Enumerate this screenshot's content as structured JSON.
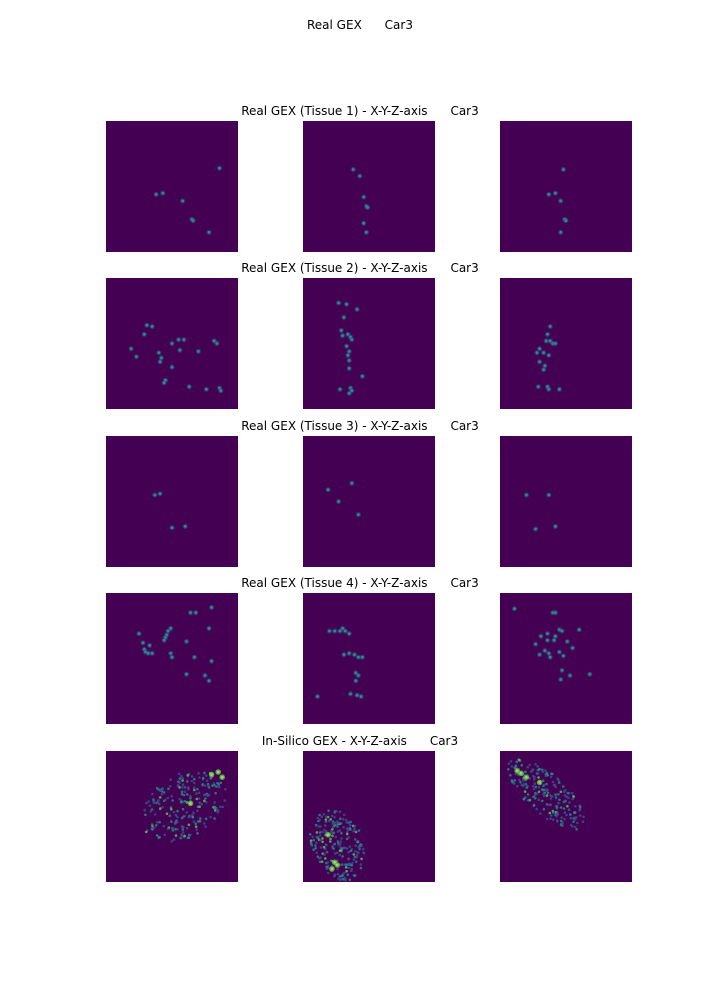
{
  "figure": {
    "title": "Real GEX      Car3"
  },
  "colors": {
    "background": "#440154",
    "low": "#3b528b",
    "mid": "#21918c",
    "high": "#5ec962",
    "peak": "#aadc32"
  },
  "chart_data": [
    {
      "type": "scatter",
      "title": "Real GEX (Tissue 1) - X-Y-Z-axis      Car3",
      "views": [
        {
          "name": "view-1",
          "points": [
            [
              0.86,
              0.36
            ],
            [
              0.38,
              0.56
            ],
            [
              0.43,
              0.55
            ],
            [
              0.58,
              0.61
            ],
            [
              0.65,
              0.75
            ],
            [
              0.66,
              0.76
            ],
            [
              0.78,
              0.85
            ]
          ]
        },
        {
          "name": "view-2",
          "points": [
            [
              0.38,
              0.37
            ],
            [
              0.43,
              0.42
            ],
            [
              0.46,
              0.58
            ],
            [
              0.48,
              0.65
            ],
            [
              0.49,
              0.66
            ],
            [
              0.46,
              0.78
            ],
            [
              0.48,
              0.85
            ]
          ]
        },
        {
          "name": "view-3",
          "points": [
            [
              0.48,
              0.37
            ],
            [
              0.37,
              0.56
            ],
            [
              0.42,
              0.55
            ],
            [
              0.46,
              0.61
            ],
            [
              0.49,
              0.75
            ],
            [
              0.5,
              0.76
            ],
            [
              0.46,
              0.85
            ]
          ]
        }
      ]
    },
    {
      "type": "scatter",
      "title": "Real GEX (Tissue 2) - X-Y-Z-axis      Car3",
      "views": [
        {
          "name": "view-1",
          "points": [
            [
              0.31,
              0.36
            ],
            [
              0.35,
              0.37
            ],
            [
              0.29,
              0.43
            ],
            [
              0.19,
              0.54
            ],
            [
              0.23,
              0.6
            ],
            [
              0.4,
              0.57
            ],
            [
              0.41,
              0.64
            ],
            [
              0.42,
              0.61
            ],
            [
              0.5,
              0.5
            ],
            [
              0.55,
              0.47
            ],
            [
              0.56,
              0.55
            ],
            [
              0.59,
              0.47
            ],
            [
              0.5,
              0.68
            ],
            [
              0.7,
              0.56
            ],
            [
              0.82,
              0.48
            ],
            [
              0.84,
              0.5
            ],
            [
              0.45,
              0.78
            ],
            [
              0.44,
              0.8
            ],
            [
              0.63,
              0.83
            ],
            [
              0.76,
              0.85
            ],
            [
              0.86,
              0.84
            ],
            [
              0.87,
              0.86
            ]
          ]
        },
        {
          "name": "view-2",
          "points": [
            [
              0.27,
              0.19
            ],
            [
              0.33,
              0.2
            ],
            [
              0.41,
              0.24
            ],
            [
              0.31,
              0.3
            ],
            [
              0.29,
              0.4
            ],
            [
              0.3,
              0.44
            ],
            [
              0.34,
              0.43
            ],
            [
              0.36,
              0.45
            ],
            [
              0.37,
              0.47
            ],
            [
              0.33,
              0.52
            ],
            [
              0.35,
              0.56
            ],
            [
              0.34,
              0.59
            ],
            [
              0.35,
              0.63
            ],
            [
              0.35,
              0.69
            ],
            [
              0.45,
              0.75
            ],
            [
              0.28,
              0.85
            ],
            [
              0.36,
              0.84
            ],
            [
              0.37,
              0.86
            ],
            [
              0.35,
              0.88
            ]
          ]
        },
        {
          "name": "view-3",
          "points": [
            [
              0.38,
              0.37
            ],
            [
              0.36,
              0.43
            ],
            [
              0.35,
              0.48
            ],
            [
              0.38,
              0.48
            ],
            [
              0.4,
              0.5
            ],
            [
              0.42,
              0.5
            ],
            [
              0.3,
              0.54
            ],
            [
              0.28,
              0.57
            ],
            [
              0.33,
              0.57
            ],
            [
              0.37,
              0.59
            ],
            [
              0.3,
              0.64
            ],
            [
              0.34,
              0.67
            ],
            [
              0.33,
              0.7
            ],
            [
              0.29,
              0.83
            ],
            [
              0.36,
              0.83
            ],
            [
              0.37,
              0.85
            ],
            [
              0.45,
              0.85
            ]
          ]
        }
      ]
    },
    {
      "type": "scatter",
      "title": "Real GEX (Tissue 3) - X-Y-Z-axis      Car3",
      "views": [
        {
          "name": "view-1",
          "points": [
            [
              0.37,
              0.45
            ],
            [
              0.41,
              0.44
            ],
            [
              0.5,
              0.7
            ],
            [
              0.6,
              0.69
            ]
          ]
        },
        {
          "name": "view-2",
          "points": [
            [
              0.19,
              0.41
            ],
            [
              0.37,
              0.36
            ],
            [
              0.27,
              0.5
            ],
            [
              0.42,
              0.6
            ]
          ]
        },
        {
          "name": "view-3",
          "points": [
            [
              0.2,
              0.45
            ],
            [
              0.37,
              0.45
            ],
            [
              0.27,
              0.71
            ],
            [
              0.42,
              0.69
            ]
          ]
        }
      ]
    },
    {
      "type": "scatter",
      "title": "Real GEX (Tissue 4) - X-Y-Z-axis      Car3",
      "views": [
        {
          "name": "view-1",
          "points": [
            [
              0.8,
              0.11
            ],
            [
              0.64,
              0.15
            ],
            [
              0.68,
              0.15
            ],
            [
              0.49,
              0.27
            ],
            [
              0.47,
              0.29
            ],
            [
              0.46,
              0.32
            ],
            [
              0.45,
              0.34
            ],
            [
              0.44,
              0.36
            ],
            [
              0.78,
              0.27
            ],
            [
              0.25,
              0.31
            ],
            [
              0.28,
              0.38
            ],
            [
              0.29,
              0.43
            ],
            [
              0.3,
              0.45
            ],
            [
              0.32,
              0.46
            ],
            [
              0.33,
              0.4
            ],
            [
              0.35,
              0.46
            ],
            [
              0.49,
              0.46
            ],
            [
              0.61,
              0.37
            ],
            [
              0.5,
              0.49
            ],
            [
              0.67,
              0.49
            ],
            [
              0.8,
              0.52
            ],
            [
              0.61,
              0.62
            ],
            [
              0.75,
              0.63
            ],
            [
              0.78,
              0.67
            ]
          ]
        },
        {
          "name": "view-2",
          "points": [
            [
              0.2,
              0.29
            ],
            [
              0.24,
              0.29
            ],
            [
              0.28,
              0.29
            ],
            [
              0.3,
              0.27
            ],
            [
              0.32,
              0.29
            ],
            [
              0.35,
              0.31
            ],
            [
              0.31,
              0.47
            ],
            [
              0.35,
              0.46
            ],
            [
              0.39,
              0.47
            ],
            [
              0.42,
              0.49
            ],
            [
              0.45,
              0.49
            ],
            [
              0.4,
              0.61
            ],
            [
              0.42,
              0.63
            ],
            [
              0.4,
              0.67
            ],
            [
              0.11,
              0.79
            ],
            [
              0.36,
              0.77
            ],
            [
              0.41,
              0.78
            ],
            [
              0.44,
              0.79
            ]
          ]
        },
        {
          "name": "view-3",
          "points": [
            [
              0.11,
              0.12
            ],
            [
              0.4,
              0.15
            ],
            [
              0.42,
              0.15
            ],
            [
              0.45,
              0.28
            ],
            [
              0.47,
              0.29
            ],
            [
              0.31,
              0.33
            ],
            [
              0.36,
              0.31
            ],
            [
              0.42,
              0.33
            ],
            [
              0.27,
              0.39
            ],
            [
              0.36,
              0.36
            ],
            [
              0.41,
              0.36
            ],
            [
              0.34,
              0.44
            ],
            [
              0.37,
              0.46
            ],
            [
              0.3,
              0.47
            ],
            [
              0.38,
              0.49
            ],
            [
              0.45,
              0.45
            ],
            [
              0.51,
              0.37
            ],
            [
              0.55,
              0.42
            ],
            [
              0.6,
              0.28
            ],
            [
              0.48,
              0.48
            ],
            [
              0.47,
              0.59
            ],
            [
              0.46,
              0.66
            ],
            [
              0.53,
              0.63
            ],
            [
              0.68,
              0.62
            ]
          ]
        }
      ]
    },
    {
      "type": "scatter",
      "title": "In-Silico GEX - X-Y-Z-axis      Car3",
      "views": [
        {
          "name": "view-1",
          "cloud": {
            "cx": 0.59,
            "cy": 0.42,
            "rx": 0.35,
            "ry": 0.24,
            "angle": -30,
            "n": 220,
            "hot": [
              [
                0.8,
                0.18
              ],
              [
                0.85,
                0.16
              ],
              [
                0.88,
                0.2
              ],
              [
                0.64,
                0.4
              ]
            ]
          }
        },
        {
          "name": "view-2",
          "cloud": {
            "cx": 0.26,
            "cy": 0.72,
            "rx": 0.2,
            "ry": 0.28,
            "angle": -20,
            "n": 220,
            "hot": [
              [
                0.24,
                0.85
              ],
              [
                0.26,
                0.87
              ],
              [
                0.22,
                0.9
              ],
              [
                0.19,
                0.64
              ]
            ]
          }
        },
        {
          "name": "view-3",
          "cloud": {
            "cx": 0.35,
            "cy": 0.33,
            "rx": 0.37,
            "ry": 0.15,
            "angle": 42,
            "n": 200,
            "hot": [
              [
                0.13,
                0.15
              ],
              [
                0.16,
                0.17
              ],
              [
                0.2,
                0.2
              ],
              [
                0.3,
                0.24
              ]
            ]
          }
        }
      ]
    }
  ]
}
